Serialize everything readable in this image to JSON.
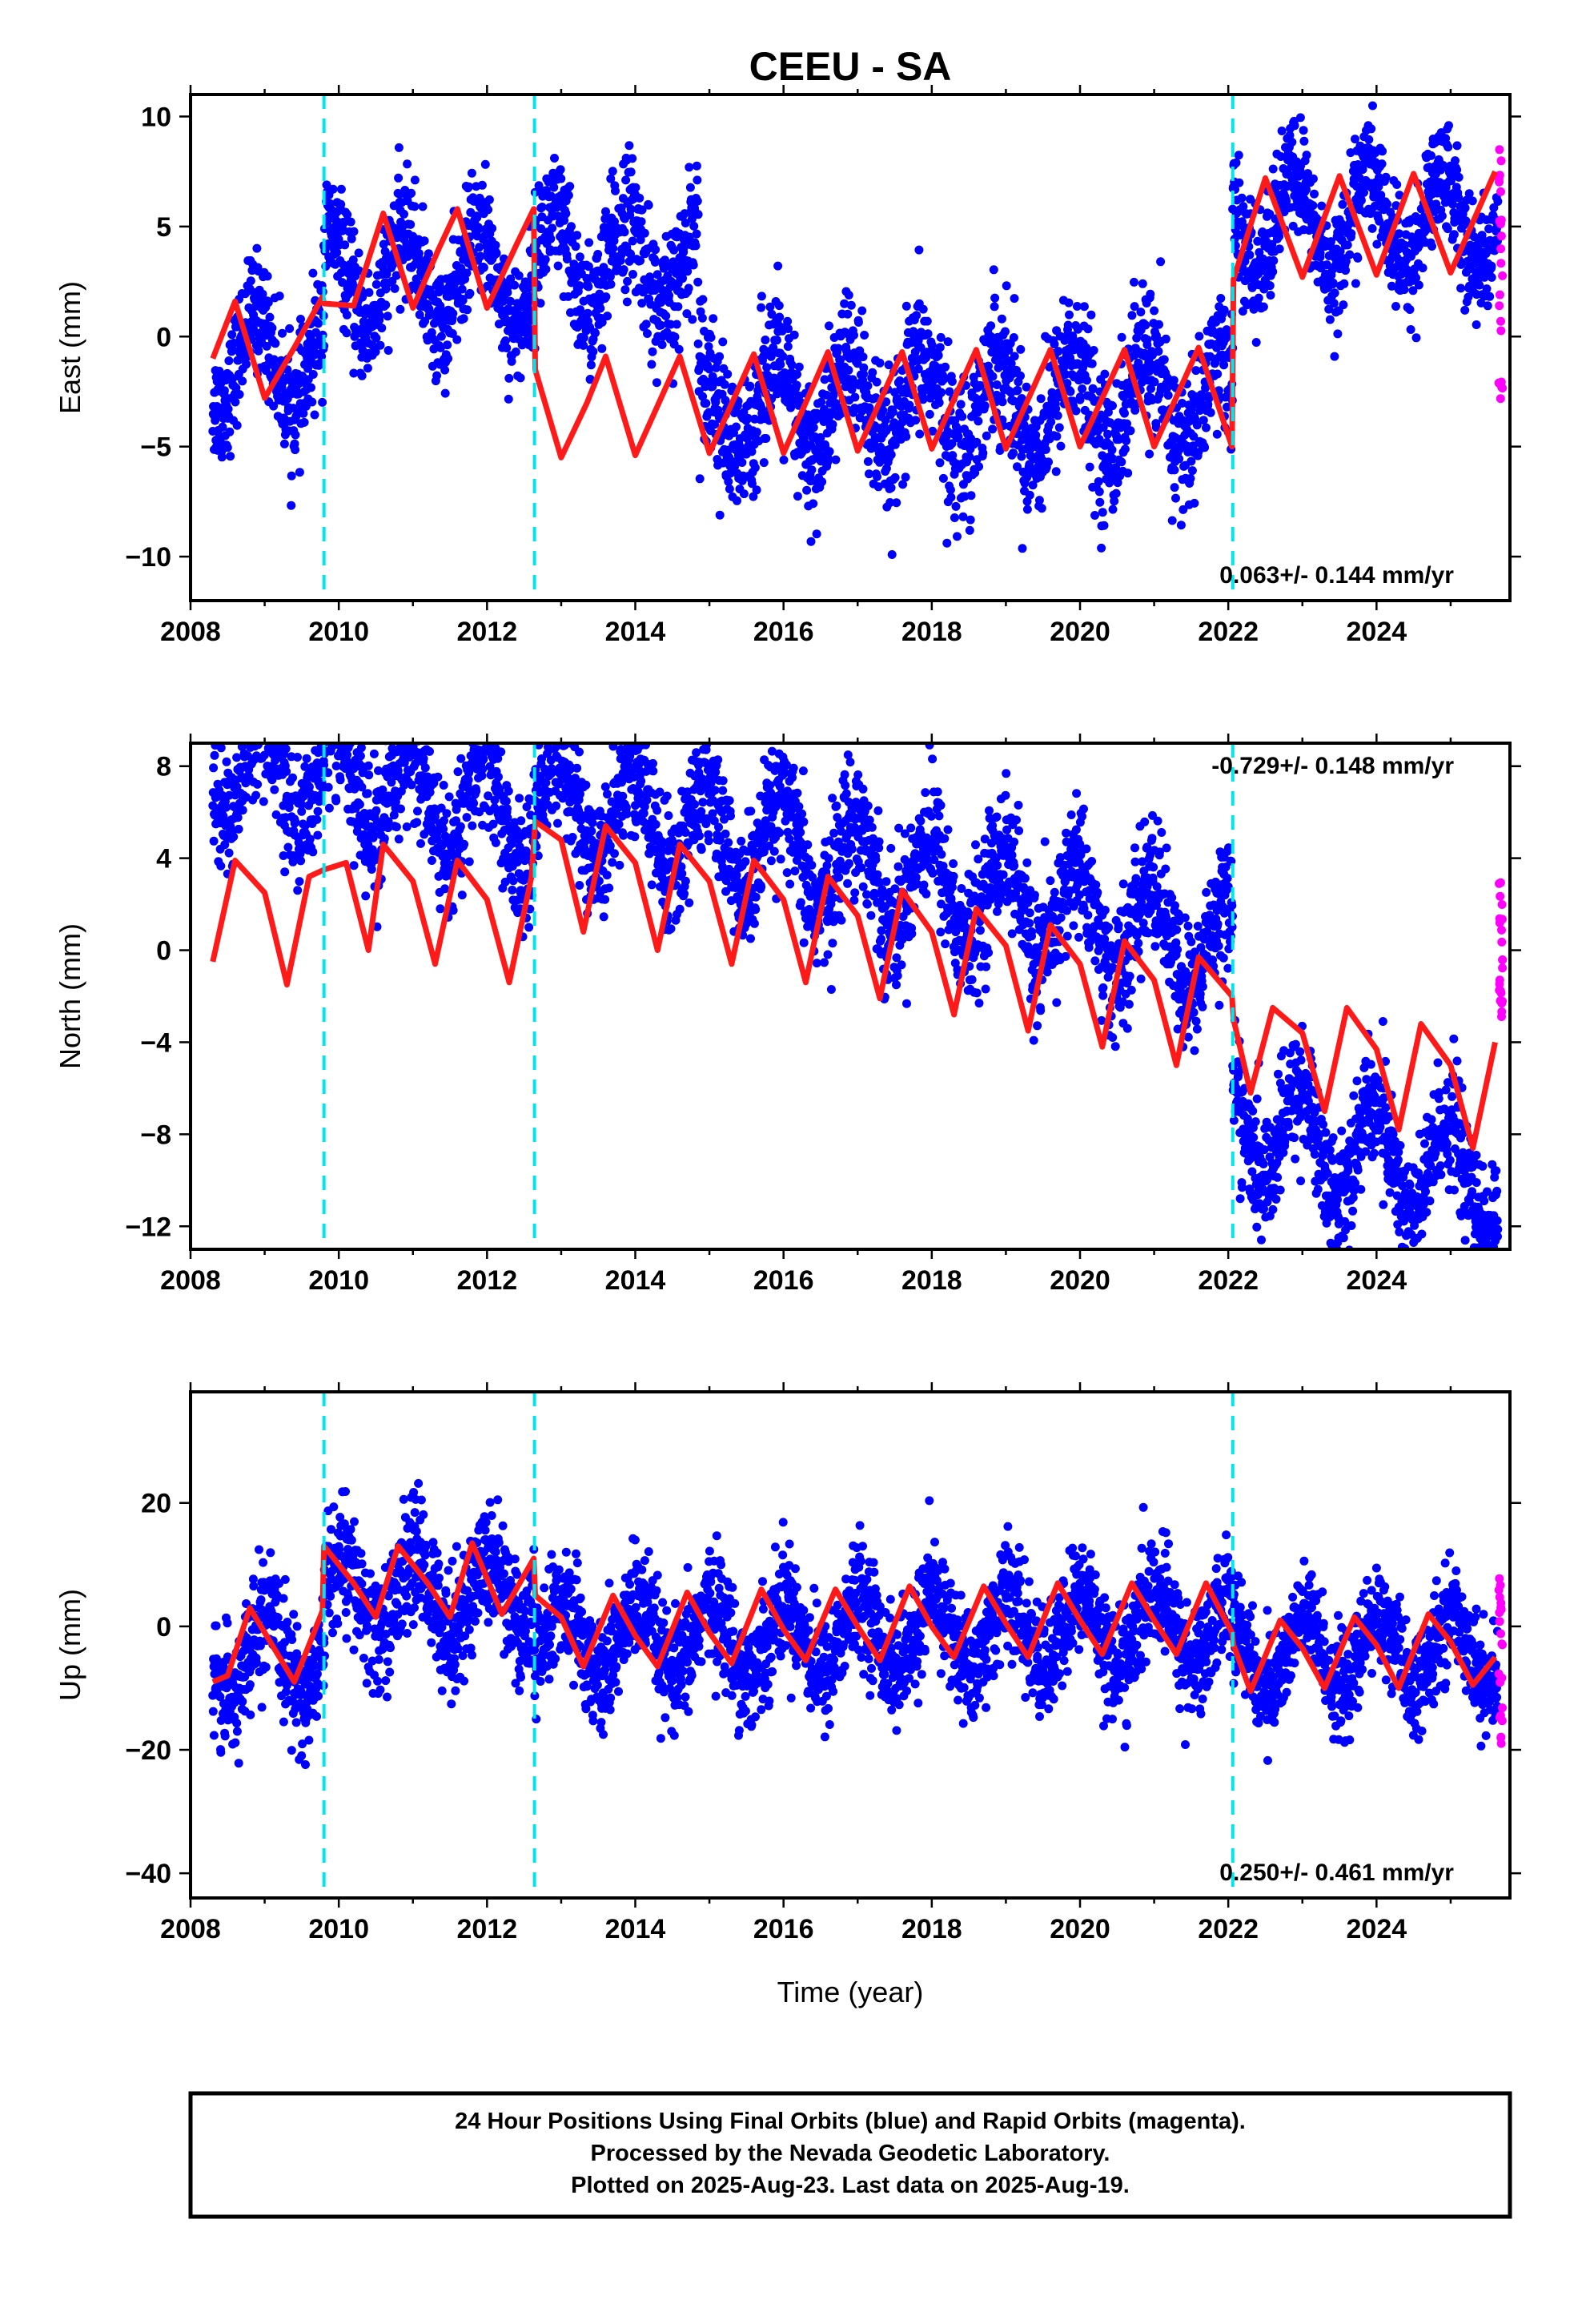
{
  "title": "CEEU - SA",
  "x_axis_label": "Time (year)",
  "caption": [
    "24 Hour Positions Using Final Orbits (blue) and Rapid Orbits (magenta).",
    "Processed by the Nevada Geodetic Laboratory.",
    "Plotted on 2025-Aug-23. Last data on 2025-Aug-19."
  ],
  "colors": {
    "final": "#0000ff",
    "rapid": "#ff00ff",
    "fit": "#ff1a1a",
    "step": "#00e5ee"
  },
  "chart_data": [
    {
      "type": "scatter",
      "component": "East",
      "ylabel": "East (mm)",
      "xlim": [
        2008.0,
        2025.8
      ],
      "ylim": [
        -12,
        11
      ],
      "xticks": [
        2008,
        2010,
        2012,
        2014,
        2016,
        2018,
        2020,
        2022,
        2024
      ],
      "yticks": [
        -10,
        -5,
        0,
        5,
        10
      ],
      "rate_text": "0.063+/- 0.144 mm/yr",
      "rate_position": "bottom-right",
      "steps": [
        2009.8,
        2012.64,
        2022.06
      ],
      "data_span": [
        2008.3,
        2025.64
      ],
      "segments": [
        {
          "start": 2008.3,
          "end": 2009.8,
          "offset": -0.5,
          "rate": 0.063,
          "annual": 2.2,
          "phase": 2.3,
          "scatter": 1.3
        },
        {
          "start": 2009.8,
          "end": 2012.64,
          "offset": 3.0,
          "rate": 0.063,
          "annual": 2.2,
          "phase": 2.3,
          "scatter": 1.3
        },
        {
          "start": 2012.64,
          "end": 2014.85,
          "offset": 3.5,
          "rate": 0.063,
          "annual": 2.2,
          "phase": 2.3,
          "scatter": 1.5
        },
        {
          "start": 2014.85,
          "end": 2022.06,
          "offset": -3.2,
          "rate": 0.063,
          "annual": 2.2,
          "phase": 2.3,
          "scatter": 1.6
        },
        {
          "start": 2022.06,
          "end": 2025.64,
          "offset": 4.8,
          "rate": 0.063,
          "annual": 2.2,
          "phase": 2.3,
          "scatter": 1.3
        }
      ],
      "fit": {
        "x": [
          2008.3,
          2008.6,
          2009.0,
          2009.4,
          2009.78,
          2009.8,
          2010.2,
          2010.6,
          2011.0,
          2011.35,
          2011.6,
          2012.0,
          2012.4,
          2012.63,
          2012.65,
          2013.0,
          2013.35,
          2013.6,
          2014.0,
          2014.6,
          2015.0,
          2015.6,
          2016.0,
          2016.6,
          2017.0,
          2017.6,
          2018.0,
          2018.6,
          2019.0,
          2019.6,
          2020.0,
          2020.6,
          2021.0,
          2021.6,
          2022.05,
          2022.07,
          2022.5,
          2023.0,
          2023.5,
          2024.0,
          2024.5,
          2025.0,
          2025.6
        ],
        "y": [
          -1.0,
          1.6,
          -2.8,
          -0.5,
          1.8,
          1.5,
          1.4,
          5.6,
          1.3,
          4.0,
          5.8,
          1.3,
          4.2,
          5.8,
          -1.5,
          -5.5,
          -3.0,
          -0.9,
          -5.4,
          -0.9,
          -5.3,
          -0.8,
          -5.3,
          -0.7,
          -5.2,
          -0.7,
          -5.1,
          -0.6,
          -5.1,
          -0.6,
          -5.0,
          -0.6,
          -5.0,
          -0.5,
          -5.0,
          2.6,
          7.2,
          2.7,
          7.3,
          2.8,
          7.4,
          2.9,
          7.5
        ]
      },
      "rapid": {
        "x": [
          2025.65,
          2025.7
        ],
        "y_min": -3.0,
        "y_max": 9.0
      }
    },
    {
      "type": "scatter",
      "component": "North",
      "ylabel": "North (mm)",
      "xlim": [
        2008.0,
        2025.8
      ],
      "ylim": [
        -13,
        9
      ],
      "xticks": [
        2008,
        2010,
        2012,
        2014,
        2016,
        2018,
        2020,
        2022,
        2024
      ],
      "yticks": [
        -12,
        -8,
        -4,
        0,
        4,
        8
      ],
      "rate_text": "-0.729+/- 0.148 mm/yr",
      "rate_position": "top-right",
      "steps": [
        2009.8,
        2012.64,
        2022.06
      ],
      "data_span": [
        2008.3,
        2025.64
      ],
      "segments": [
        {
          "start": 2008.3,
          "end": 2009.8,
          "offset": 2.0,
          "rate": -0.729,
          "annual": 2.2,
          "phase": 1.8,
          "scatter": 1.3
        },
        {
          "start": 2009.8,
          "end": 2012.64,
          "offset": 2.3,
          "rate": -0.729,
          "annual": 2.2,
          "phase": 1.8,
          "scatter": 1.3
        },
        {
          "start": 2012.64,
          "end": 2022.06,
          "offset": 3.6,
          "rate": -0.729,
          "annual": 2.2,
          "phase": 1.8,
          "scatter": 1.4
        },
        {
          "start": 2022.06,
          "end": 2025.64,
          "offset": -3.8,
          "rate": -0.729,
          "annual": 2.2,
          "phase": 1.8,
          "scatter": 1.3
        }
      ],
      "fit": {
        "x": [
          2008.3,
          2008.6,
          2009.0,
          2009.3,
          2009.6,
          2009.8,
          2010.1,
          2010.4,
          2010.6,
          2011.0,
          2011.3,
          2011.6,
          2012.0,
          2012.3,
          2012.6,
          2012.65,
          2013.0,
          2013.3,
          2013.6,
          2014.0,
          2014.3,
          2014.6,
          2015.0,
          2015.3,
          2015.6,
          2016.0,
          2016.3,
          2016.6,
          2017.0,
          2017.3,
          2017.6,
          2018.0,
          2018.3,
          2018.6,
          2019.0,
          2019.3,
          2019.6,
          2020.0,
          2020.3,
          2020.6,
          2021.0,
          2021.3,
          2021.6,
          2022.05,
          2022.07,
          2022.3,
          2022.6,
          2023.0,
          2023.3,
          2023.6,
          2024.0,
          2024.3,
          2024.6,
          2025.0,
          2025.3,
          2025.6
        ],
        "y": [
          -0.5,
          3.9,
          2.5,
          -1.5,
          3.2,
          3.5,
          3.8,
          0.0,
          4.6,
          3.0,
          -0.6,
          3.9,
          2.2,
          -1.4,
          3.2,
          5.6,
          4.8,
          0.8,
          5.4,
          3.8,
          0.0,
          4.6,
          3.0,
          -0.6,
          3.9,
          2.2,
          -1.4,
          3.2,
          1.5,
          -2.1,
          2.6,
          0.8,
          -2.8,
          1.8,
          0.2,
          -3.5,
          1.1,
          -0.6,
          -4.2,
          0.4,
          -1.3,
          -5.0,
          -0.3,
          -2.0,
          -3.0,
          -6.2,
          -2.5,
          -3.6,
          -7.0,
          -2.5,
          -4.3,
          -7.8,
          -3.2,
          -5.0,
          -8.6,
          -4.0
        ]
      },
      "rapid": {
        "x": [
          2025.65,
          2025.7
        ],
        "y_min": -3.0,
        "y_max": 3.0
      }
    },
    {
      "type": "scatter",
      "component": "Up",
      "ylabel": "Up (mm)",
      "xlim": [
        2008.0,
        2025.8
      ],
      "ylim": [
        -44,
        38
      ],
      "xticks": [
        2008,
        2010,
        2012,
        2014,
        2016,
        2018,
        2020,
        2022,
        2024
      ],
      "yticks": [
        -40,
        -20,
        0,
        20
      ],
      "rate_text": "0.250+/- 0.461 mm/yr",
      "rate_position": "bottom-right",
      "steps": [
        2009.8,
        2012.64,
        2022.06
      ],
      "data_span": [
        2008.3,
        2025.64
      ],
      "segments": [
        {
          "start": 2008.3,
          "end": 2009.8,
          "offset": -3.0,
          "rate": 0.25,
          "annual": 6.0,
          "phase": 1.4,
          "scatter": 4.5
        },
        {
          "start": 2009.8,
          "end": 2012.64,
          "offset": 6.5,
          "rate": 0.25,
          "annual": 6.0,
          "phase": 1.4,
          "scatter": 5.0
        },
        {
          "start": 2012.64,
          "end": 2022.06,
          "offset": -1.5,
          "rate": 0.25,
          "annual": 6.0,
          "phase": 1.4,
          "scatter": 4.5
        },
        {
          "start": 2022.06,
          "end": 2025.64,
          "offset": -6.0,
          "rate": 0.25,
          "annual": 6.0,
          "phase": 1.4,
          "scatter": 4.0
        }
      ],
      "fit": {
        "x": [
          2008.3,
          2008.5,
          2008.8,
          2009.1,
          2009.4,
          2009.78,
          2009.8,
          2010.2,
          2010.5,
          2010.8,
          2011.2,
          2011.5,
          2011.8,
          2012.2,
          2012.63,
          2012.65,
          2013.0,
          2013.3,
          2013.7,
          2014.0,
          2014.3,
          2014.7,
          2015.0,
          2015.3,
          2015.7,
          2016.0,
          2016.3,
          2016.7,
          2017.0,
          2017.3,
          2017.7,
          2018.0,
          2018.3,
          2018.7,
          2019.0,
          2019.3,
          2019.7,
          2020.0,
          2020.3,
          2020.7,
          2021.0,
          2021.3,
          2021.7,
          2022.05,
          2022.07,
          2022.3,
          2022.7,
          2023.0,
          2023.3,
          2023.7,
          2024.0,
          2024.3,
          2024.7,
          2025.0,
          2025.3,
          2025.6
        ],
        "y": [
          -9.0,
          -8.0,
          3.0,
          -3.0,
          -9.0,
          2.5,
          13.0,
          7.0,
          1.5,
          13.0,
          7.0,
          1.5,
          13.5,
          2.0,
          11.0,
          5.0,
          1.5,
          -6.5,
          5.0,
          -1.5,
          -6.5,
          5.5,
          -1.0,
          -6.0,
          6.0,
          -0.5,
          -5.5,
          6.0,
          0.0,
          -5.5,
          6.5,
          0.0,
          -5.0,
          6.5,
          0.5,
          -5.0,
          7.0,
          1.0,
          -4.5,
          7.0,
          1.0,
          -4.5,
          7.0,
          -1.0,
          -3.0,
          -10.5,
          1.0,
          -3.5,
          -10.0,
          1.5,
          -3.0,
          -10.0,
          2.0,
          -2.5,
          -9.5,
          -5.0
        ]
      },
      "rapid": {
        "x": [
          2025.65,
          2025.7
        ],
        "y_min": -22.0,
        "y_max": 8.0
      }
    }
  ]
}
